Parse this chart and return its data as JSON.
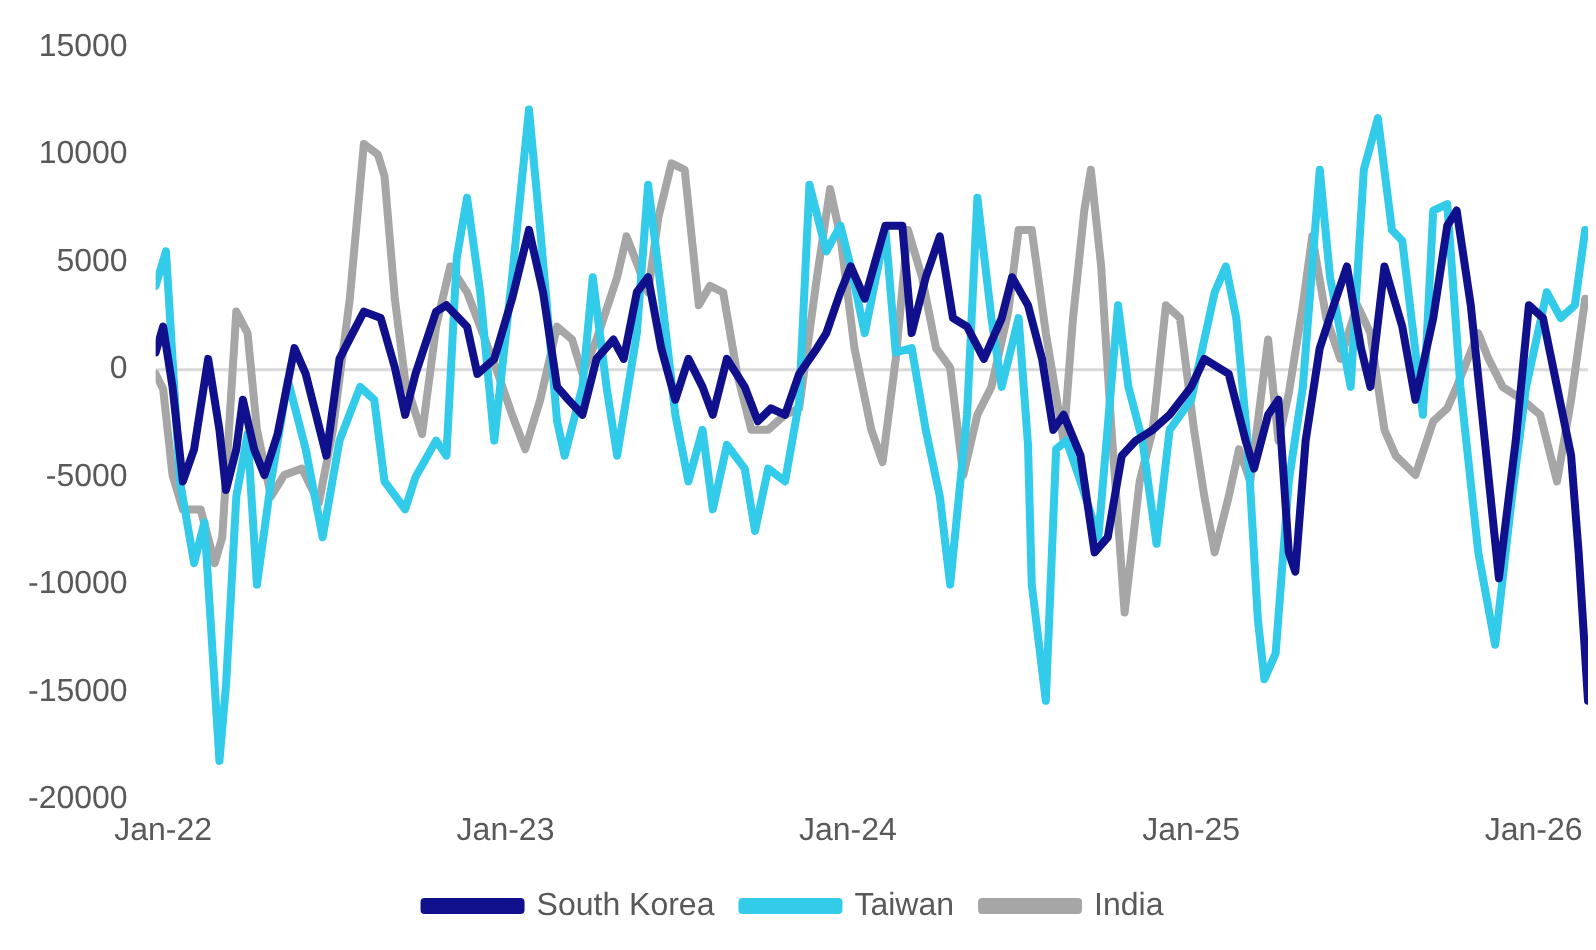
{
  "chart_data": {
    "type": "line",
    "xlim": [
      "2021-12-24",
      "2026-02-28"
    ],
    "ylim": [
      -20000,
      15000
    ],
    "xticks": [
      {
        "value": "2022-01-01",
        "label": "Jan-22"
      },
      {
        "value": "2023-01-01",
        "label": "Jan-23"
      },
      {
        "value": "2024-01-01",
        "label": "Jan-24"
      },
      {
        "value": "2025-01-01",
        "label": "Jan-25"
      },
      {
        "value": "2026-01-01",
        "label": "Jan-26"
      }
    ],
    "yticks": [
      -20000,
      -15000,
      -10000,
      -5000,
      0,
      5000,
      10000,
      15000
    ],
    "grid": false,
    "legend": "bottom",
    "marker": "none",
    "line_style": "solid",
    "ref_lines": [
      {
        "axis": "y",
        "value": 0,
        "color": "#d9d9d9"
      }
    ],
    "series": [
      {
        "name": "South Korea",
        "color": "#10108c",
        "x": [
          "2021-12-24",
          "2022-01-01",
          "2022-01-11",
          "2022-01-22",
          "2022-02-03",
          "2022-02-18",
          "2022-03-02",
          "2022-03-09",
          "2022-03-20",
          "2022-03-27",
          "2022-04-08",
          "2022-04-19",
          "2022-05-03",
          "2022-05-21",
          "2022-06-02",
          "2022-06-13",
          "2022-06-24",
          "2022-07-08",
          "2022-07-22",
          "2022-08-03",
          "2022-08-21",
          "2022-09-05",
          "2022-09-16",
          "2022-09-27",
          "2022-10-19",
          "2022-10-30",
          "2022-11-21",
          "2022-12-02",
          "2022-12-20",
          "2023-01-08",
          "2023-01-26",
          "2023-02-10",
          "2023-02-25",
          "2023-03-09",
          "2023-03-24",
          "2023-04-08",
          "2023-04-26",
          "2023-05-07",
          "2023-05-21",
          "2023-06-02",
          "2023-06-16",
          "2023-07-01",
          "2023-07-15",
          "2023-07-30",
          "2023-08-10",
          "2023-08-25",
          "2023-09-13",
          "2023-09-27",
          "2023-10-11",
          "2023-10-26",
          "2023-11-10",
          "2023-11-29",
          "2023-12-09",
          "2023-12-24",
          "2024-01-04",
          "2024-01-19",
          "2024-02-10",
          "2024-02-28",
          "2024-03-09",
          "2024-03-24",
          "2024-04-08",
          "2024-04-22",
          "2024-05-07",
          "2024-05-25",
          "2024-06-13",
          "2024-06-24",
          "2024-07-11",
          "2024-07-26",
          "2024-08-07",
          "2024-08-18",
          "2024-09-05",
          "2024-09-20",
          "2024-10-04",
          "2024-10-19",
          "2024-11-03",
          "2024-11-21",
          "2024-12-09",
          "2025-01-01",
          "2025-01-15",
          "2025-02-10",
          "2025-02-28",
          "2025-03-09",
          "2025-03-24",
          "2025-04-04",
          "2025-04-15",
          "2025-04-22",
          "2025-05-03",
          "2025-05-18",
          "2025-06-02",
          "2025-06-16",
          "2025-07-01",
          "2025-07-11",
          "2025-07-26",
          "2025-08-14",
          "2025-08-28",
          "2025-09-16",
          "2025-10-01",
          "2025-10-11",
          "2025-10-26",
          "2025-11-10",
          "2025-11-25",
          "2025-12-13",
          "2025-12-27",
          "2026-01-11",
          "2026-01-26",
          "2026-02-10",
          "2026-02-18",
          "2026-02-28"
        ],
        "values": [
          800,
          2000,
          -800,
          -5200,
          -3700,
          500,
          -2800,
          -5600,
          -3700,
          -1400,
          -3700,
          -4900,
          -3000,
          1000,
          -200,
          -2100,
          -4000,
          500,
          1700,
          2700,
          2400,
          100,
          -2100,
          -200,
          2700,
          3000,
          2000,
          -200,
          500,
          3300,
          6500,
          3600,
          -800,
          -1400,
          -2100,
          500,
          1400,
          500,
          3600,
          4300,
          1000,
          -1400,
          500,
          -800,
          -2100,
          500,
          -800,
          -2400,
          -1800,
          -2100,
          -200,
          1000,
          1700,
          3600,
          4800,
          3300,
          6700,
          6700,
          1700,
          4300,
          6200,
          2400,
          2000,
          500,
          2400,
          4300,
          3000,
          500,
          -2800,
          -2100,
          -4000,
          -8500,
          -7800,
          -4000,
          -3300,
          -2800,
          -2100,
          -800,
          500,
          -200,
          -3300,
          -4600,
          -2100,
          -1400,
          -8500,
          -9400,
          -3300,
          1000,
          3000,
          4800,
          1000,
          -800,
          4800,
          2000,
          -1400,
          2400,
          6700,
          7400,
          3000,
          -3300,
          -9700,
          -3300,
          3000,
          2400,
          -800,
          -4000,
          -8500,
          -15400
        ]
      },
      {
        "name": "Taiwan",
        "color": "#33cbea",
        "x": [
          "2021-12-24",
          "2022-01-04",
          "2022-01-19",
          "2022-02-03",
          "2022-02-14",
          "2022-03-02",
          "2022-03-09",
          "2022-03-20",
          "2022-04-01",
          "2022-04-11",
          "2022-04-26",
          "2022-05-14",
          "2022-06-02",
          "2022-06-20",
          "2022-07-08",
          "2022-07-30",
          "2022-08-14",
          "2022-08-25",
          "2022-09-16",
          "2022-09-27",
          "2022-10-19",
          "2022-10-30",
          "2022-11-10",
          "2022-11-21",
          "2022-12-05",
          "2022-12-20",
          "2023-01-08",
          "2023-01-26",
          "2023-02-07",
          "2023-02-25",
          "2023-03-05",
          "2023-03-24",
          "2023-04-04",
          "2023-04-19",
          "2023-04-30",
          "2023-05-21",
          "2023-06-02",
          "2023-06-16",
          "2023-07-01",
          "2023-07-15",
          "2023-07-30",
          "2023-08-10",
          "2023-08-25",
          "2023-09-13",
          "2023-09-24",
          "2023-10-08",
          "2023-10-26",
          "2023-11-10",
          "2023-11-21",
          "2023-12-09",
          "2023-12-24",
          "2024-01-04",
          "2024-01-19",
          "2024-02-10",
          "2024-02-21",
          "2024-03-09",
          "2024-03-24",
          "2024-04-08",
          "2024-04-19",
          "2024-05-07",
          "2024-05-18",
          "2024-06-02",
          "2024-06-13",
          "2024-07-01",
          "2024-07-11",
          "2024-07-15",
          "2024-07-30",
          "2024-08-10",
          "2024-08-21",
          "2024-09-05",
          "2024-09-24",
          "2024-10-15",
          "2024-10-26",
          "2024-11-10",
          "2024-11-25",
          "2024-12-09",
          "2025-01-01",
          "2025-01-26",
          "2025-02-07",
          "2025-02-18",
          "2025-03-02",
          "2025-03-13",
          "2025-03-20",
          "2025-04-01",
          "2025-04-15",
          "2025-04-30",
          "2025-05-18",
          "2025-05-29",
          "2025-06-20",
          "2025-07-04",
          "2025-07-19",
          "2025-08-03",
          "2025-08-14",
          "2025-09-05",
          "2025-09-16",
          "2025-10-01",
          "2025-10-15",
          "2025-11-03",
          "2025-11-21",
          "2025-12-09",
          "2025-12-24",
          "2026-01-15",
          "2026-01-30",
          "2026-02-14",
          "2026-02-25"
        ],
        "values": [
          3900,
          5500,
          -5200,
          -9000,
          -7100,
          -18200,
          -14700,
          -5900,
          -3000,
          -10000,
          -5200,
          -500,
          -3700,
          -7800,
          -3300,
          -800,
          -1400,
          -5200,
          -6500,
          -5000,
          -3300,
          -4000,
          5200,
          8000,
          3600,
          -3300,
          4300,
          12100,
          6500,
          -2400,
          -4000,
          -800,
          4300,
          -900,
          -4000,
          1700,
          8600,
          3600,
          -2100,
          -5200,
          -2800,
          -6500,
          -3500,
          -4600,
          -7500,
          -4600,
          -5200,
          -1500,
          8600,
          5500,
          6700,
          4800,
          1700,
          6500,
          800,
          1000,
          -2800,
          -5900,
          -10000,
          -2100,
          8000,
          2400,
          -800,
          2400,
          -3500,
          -10000,
          -15400,
          -3700,
          -3300,
          -5200,
          -7800,
          3000,
          -800,
          -3300,
          -8100,
          -2800,
          -1400,
          3600,
          4800,
          2400,
          -3300,
          -11600,
          -14400,
          -13200,
          -5200,
          -800,
          9300,
          4300,
          -800,
          9300,
          11700,
          6500,
          6000,
          -2100,
          7400,
          7700,
          -800,
          -8500,
          -12800,
          -5900,
          -800,
          3600,
          2400,
          3000,
          6500
        ]
      },
      {
        "name": "India",
        "color": "#a6a6a6",
        "x": [
          "2021-12-24",
          "2022-01-01",
          "2022-01-11",
          "2022-01-22",
          "2022-02-10",
          "2022-02-25",
          "2022-03-05",
          "2022-03-20",
          "2022-04-01",
          "2022-04-11",
          "2022-04-26",
          "2022-05-10",
          "2022-05-29",
          "2022-06-16",
          "2022-07-01",
          "2022-07-19",
          "2022-08-03",
          "2022-08-18",
          "2022-08-25",
          "2022-09-05",
          "2022-09-16",
          "2022-10-04",
          "2022-10-19",
          "2022-11-03",
          "2022-11-21",
          "2022-12-05",
          "2022-12-24",
          "2023-01-08",
          "2023-01-22",
          "2023-02-07",
          "2023-02-25",
          "2023-03-13",
          "2023-03-24",
          "2023-04-08",
          "2023-04-30",
          "2023-05-10",
          "2023-06-02",
          "2023-06-13",
          "2023-06-27",
          "2023-07-11",
          "2023-07-26",
          "2023-08-07",
          "2023-08-21",
          "2023-09-05",
          "2023-09-20",
          "2023-10-08",
          "2023-10-26",
          "2023-11-10",
          "2023-11-29",
          "2023-12-13",
          "2023-12-24",
          "2024-01-08",
          "2024-01-26",
          "2024-02-07",
          "2024-02-21",
          "2024-03-05",
          "2024-03-20",
          "2024-04-04",
          "2024-04-19",
          "2024-05-03",
          "2024-05-18",
          "2024-06-02",
          "2024-06-20",
          "2024-07-01",
          "2024-07-15",
          "2024-07-30",
          "2024-08-18",
          "2024-08-28",
          "2024-09-09",
          "2024-09-16",
          "2024-09-27",
          "2024-10-08",
          "2024-10-22",
          "2024-11-07",
          "2024-11-21",
          "2024-12-05",
          "2024-12-20",
          "2025-01-04",
          "2025-01-15",
          "2025-01-26",
          "2025-02-10",
          "2025-02-21",
          "2025-03-05",
          "2025-03-24",
          "2025-04-04",
          "2025-04-15",
          "2025-04-30",
          "2025-05-10",
          "2025-05-25",
          "2025-06-09",
          "2025-06-27",
          "2025-07-11",
          "2025-07-26",
          "2025-08-07",
          "2025-08-28",
          "2025-09-16",
          "2025-10-01",
          "2025-10-11",
          "2025-11-03",
          "2025-11-14",
          "2025-11-29",
          "2025-12-20",
          "2026-01-08",
          "2026-01-26",
          "2026-02-10",
          "2026-02-25"
        ],
        "values": [
          -200,
          -900,
          -4900,
          -6500,
          -6500,
          -9000,
          -7800,
          2700,
          1700,
          -2800,
          -5900,
          -4900,
          -4600,
          -6200,
          -2800,
          3300,
          10500,
          10000,
          9000,
          3300,
          -500,
          -3000,
          2000,
          4800,
          3600,
          2000,
          -200,
          -2100,
          -3700,
          -1400,
          2000,
          1400,
          -200,
          1400,
          4300,
          6200,
          3600,
          7100,
          9600,
          9300,
          3000,
          3900,
          3600,
          -200,
          -2800,
          -2800,
          -2100,
          -1800,
          4300,
          8400,
          6200,
          1000,
          -2800,
          -4300,
          500,
          6500,
          4300,
          1000,
          100,
          -4900,
          -2100,
          -800,
          2700,
          6500,
          6500,
          1700,
          -3300,
          2400,
          7400,
          9300,
          4800,
          -2800,
          -11300,
          -5200,
          -2800,
          3000,
          2400,
          -2800,
          -5900,
          -8500,
          -5900,
          -3700,
          -5200,
          1400,
          -3300,
          -1100,
          3000,
          6200,
          2400,
          500,
          3000,
          1700,
          -2800,
          -4000,
          -4900,
          -2400,
          -1800,
          -800,
          1700,
          500,
          -800,
          -1400,
          -2100,
          -5200,
          -1400,
          3300
        ]
      }
    ]
  }
}
